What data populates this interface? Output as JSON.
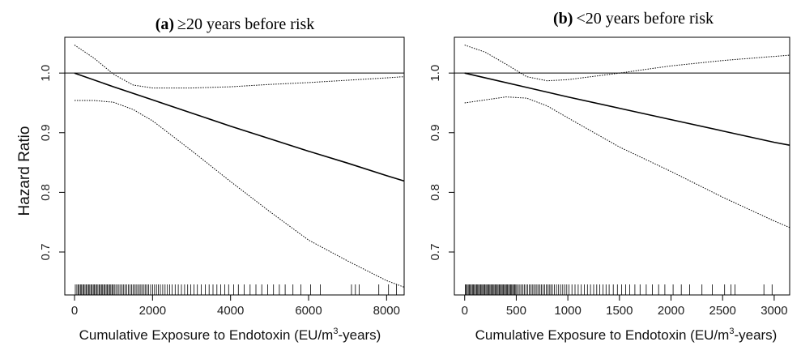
{
  "figure": {
    "ylabel": "Hazard Ratio"
  },
  "chart_data": [
    {
      "type": "line",
      "title_prefix": "(a)",
      "title_text": "≥20 years before risk",
      "xlabel_main": "Cumulative Exposure to Endotoxin (EU/m",
      "xlabel_sup": "3",
      "xlabel_end": "-years)",
      "ylabel": "Hazard Ratio",
      "xlim": [
        -250,
        8450
      ],
      "ylim": [
        0.628,
        1.06
      ],
      "x_ticks": [
        0,
        2000,
        4000,
        6000,
        8000
      ],
      "x_tick_labels": [
        "0",
        "2000",
        "4000",
        "6000",
        "8000"
      ],
      "y_ticks": [
        0.7,
        0.8,
        0.9,
        1.0
      ],
      "y_tick_labels": [
        "0.7",
        "0.8",
        "0.9",
        "1.0"
      ],
      "reference_line": 1.0,
      "grid": false,
      "series": [
        {
          "style": "solid",
          "x": [
            0,
            1000,
            2000,
            3000,
            4000,
            5000,
            6000,
            7000,
            8000,
            8450
          ],
          "y": [
            1.0,
            0.977,
            0.955,
            0.933,
            0.911,
            0.89,
            0.869,
            0.849,
            0.828,
            0.819
          ]
        },
        {
          "style": "dotted",
          "x": [
            0,
            500,
            1000,
            1500,
            2000,
            3000,
            4000,
            5000,
            6000,
            7000,
            8000,
            8450
          ],
          "y": [
            1.047,
            1.025,
            0.998,
            0.98,
            0.975,
            0.975,
            0.977,
            0.981,
            0.984,
            0.988,
            0.992,
            0.994
          ]
        },
        {
          "style": "dotted",
          "x": [
            0,
            500,
            1000,
            1500,
            2000,
            3000,
            4000,
            5000,
            6000,
            7000,
            8000,
            8450
          ],
          "y": [
            0.954,
            0.954,
            0.951,
            0.939,
            0.92,
            0.87,
            0.818,
            0.768,
            0.72,
            0.685,
            0.652,
            0.641
          ]
        }
      ],
      "rug": [
        20,
        60,
        90,
        120,
        150,
        180,
        210,
        240,
        270,
        300,
        330,
        360,
        390,
        420,
        450,
        480,
        510,
        540,
        570,
        600,
        630,
        660,
        690,
        720,
        750,
        780,
        810,
        840,
        870,
        900,
        930,
        960,
        990,
        1020,
        1060,
        1100,
        1140,
        1180,
        1220,
        1260,
        1300,
        1340,
        1380,
        1420,
        1460,
        1500,
        1540,
        1580,
        1620,
        1660,
        1700,
        1740,
        1780,
        1820,
        1860,
        1900,
        1950,
        2000,
        2050,
        2100,
        2150,
        2200,
        2260,
        2320,
        2380,
        2440,
        2500,
        2580,
        2660,
        2740,
        2820,
        2900,
        2980,
        3060,
        3150,
        3250,
        3350,
        3450,
        3550,
        3650,
        3750,
        3850,
        3950,
        4080,
        4200,
        4350,
        4500,
        4650,
        4800,
        4950,
        5100,
        5250,
        5400,
        5600,
        5800,
        6050,
        6300,
        7100,
        7200,
        7300,
        7800,
        8050,
        8250
      ]
    },
    {
      "type": "line",
      "title_prefix": "(b)",
      "title_text": "<20 years before risk",
      "xlabel_main": "Cumulative Exposure to Endotoxin (EU/m",
      "xlabel_sup": "3",
      "xlabel_end": "-years)",
      "ylabel": "",
      "xlim": [
        -100,
        3150
      ],
      "ylim": [
        0.628,
        1.06
      ],
      "x_ticks": [
        0,
        500,
        1000,
        1500,
        2000,
        2500,
        3000
      ],
      "x_tick_labels": [
        "0",
        "500",
        "1000",
        "1500",
        "2000",
        "2500",
        "3000"
      ],
      "y_ticks": [
        0.7,
        0.8,
        0.9,
        1.0
      ],
      "y_tick_labels": [
        "0.7",
        "0.8",
        "0.9",
        "1.0"
      ],
      "reference_line": 1.0,
      "grid": false,
      "series": [
        {
          "style": "solid",
          "x": [
            0,
            500,
            1000,
            1500,
            2000,
            2500,
            3000,
            3150
          ],
          "y": [
            1.0,
            0.98,
            0.96,
            0.941,
            0.922,
            0.903,
            0.884,
            0.879
          ]
        },
        {
          "style": "dotted",
          "x": [
            0,
            200,
            400,
            600,
            800,
            1000,
            1500,
            2000,
            2500,
            3000,
            3150
          ],
          "y": [
            1.047,
            1.035,
            1.015,
            0.994,
            0.987,
            0.989,
            1.0,
            1.012,
            1.021,
            1.028,
            1.03
          ]
        },
        {
          "style": "dotted",
          "x": [
            0,
            200,
            400,
            600,
            800,
            1000,
            1500,
            2000,
            2500,
            3000,
            3150
          ],
          "y": [
            0.95,
            0.955,
            0.96,
            0.958,
            0.945,
            0.925,
            0.876,
            0.835,
            0.792,
            0.752,
            0.741
          ]
        }
      ],
      "rug": [
        5,
        15,
        25,
        35,
        45,
        55,
        65,
        75,
        85,
        95,
        105,
        115,
        125,
        135,
        145,
        155,
        165,
        175,
        185,
        195,
        205,
        215,
        225,
        235,
        245,
        255,
        265,
        275,
        285,
        295,
        305,
        315,
        325,
        335,
        345,
        355,
        365,
        375,
        385,
        395,
        405,
        415,
        425,
        435,
        445,
        455,
        465,
        475,
        485,
        495,
        505,
        520,
        535,
        550,
        565,
        580,
        595,
        610,
        625,
        640,
        655,
        670,
        685,
        700,
        715,
        730,
        745,
        760,
        775,
        790,
        805,
        820,
        835,
        850,
        870,
        890,
        910,
        930,
        950,
        970,
        990,
        1010,
        1040,
        1070,
        1100,
        1130,
        1160,
        1190,
        1220,
        1250,
        1280,
        1310,
        1340,
        1370,
        1400,
        1440,
        1480,
        1520,
        1560,
        1600,
        1650,
        1700,
        1760,
        1820,
        1880,
        1940,
        2020,
        2100,
        2180,
        2300,
        2400,
        2520,
        2580,
        2620,
        2900,
        2980
      ]
    }
  ]
}
